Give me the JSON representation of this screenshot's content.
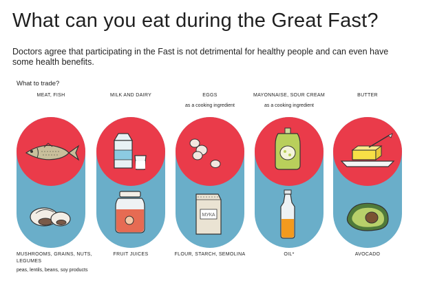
{
  "title": "What can you eat during the Great Fast?",
  "subtitle": "Doctors agree that participating in the Fast is not detrimental for healthy people and can even have some health benefits.",
  "section_label": "What to trade?",
  "colors": {
    "red": "#ea3b4a",
    "blue": "#6aaec9"
  },
  "columns": [
    {
      "top": "MEAT, FISH",
      "note": "",
      "bottom": "MUSHROOMS, GRAINS, NUTS, LEGUMES",
      "bottom_note": "peas, lentils, beans, soy products",
      "top_icon": "fish-icon",
      "bottom_icon": "mushrooms-icon"
    },
    {
      "top": "MILK AND DAIRY",
      "note": "",
      "bottom": "FRUIT JUICES",
      "bottom_note": "",
      "top_icon": "milk-carton-icon",
      "bottom_icon": "juice-jar-icon"
    },
    {
      "top": "EGGS",
      "note": "as a cooking ingredient",
      "bottom": "FLOUR, STARCH, SEMOLINA",
      "bottom_note": "",
      "top_icon": "eggs-icon",
      "bottom_icon": "flour-bag-icon",
      "bag_text": "МУКА"
    },
    {
      "top": "MAYONNAISE, SOUR CREAM",
      "note": "as a cooking ingredient",
      "bottom": "OIL*",
      "bottom_note": "",
      "top_icon": "mayonnaise-pack-icon",
      "bottom_icon": "oil-bottle-icon"
    },
    {
      "top": "BUTTER",
      "note": "",
      "bottom": "AVOCADO",
      "bottom_note": "",
      "top_icon": "butter-dish-icon",
      "bottom_icon": "avocado-icon"
    }
  ]
}
